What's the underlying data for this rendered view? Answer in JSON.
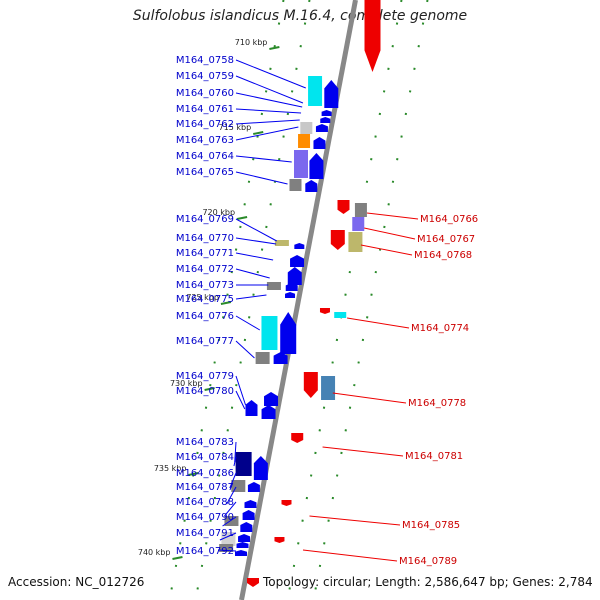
{
  "title": "Sulfolobus islandicus M.16.4, complete genome",
  "accession_label": "Accession: NC_012726",
  "topology_label": "Topology: circular; Length: 2,586,647 bp; Genes: 2,784",
  "colors": {
    "forward": "#0000ee",
    "reverse": "#ee0000",
    "backbone": "#888888",
    "tick": "#2a8a2a"
  },
  "scale_marks": [
    "710 kbp",
    "715 kbp",
    "720 kbp",
    "725 kbp",
    "730 kbp",
    "735 kbp",
    "740 kbp"
  ],
  "left_genes": [
    "M164_0758",
    "M164_0759",
    "M164_0760",
    "M164_0761",
    "M164_0762",
    "M164_0763",
    "M164_0764",
    "M164_0765",
    "M164_0769",
    "M164_0770",
    "M164_0771",
    "M164_0772",
    "M164_0773",
    "M164_0775",
    "M164_0776",
    "M164_0777",
    "M164_0779",
    "M164_0780",
    "M164_0783",
    "M164_0784",
    "M164_0786",
    "M164_0787",
    "M164_0788",
    "M164_0790",
    "M164_0791",
    "M164_0792"
  ],
  "right_genes": [
    "M164_0766",
    "M164_0767",
    "M164_0768",
    "M164_0774",
    "M164_0778",
    "M164_0781",
    "M164_0785",
    "M164_0789"
  ]
}
